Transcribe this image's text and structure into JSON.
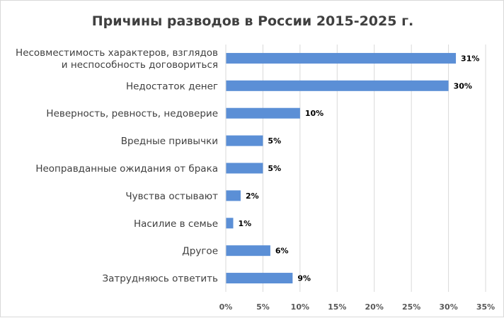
{
  "chart_data": {
    "type": "bar",
    "orientation": "horizontal",
    "title": "Причины разводов в России 2015-2025 г.",
    "categories": [
      [
        "Несовместимость характеров, взглядов",
        "и неспособность договориться"
      ],
      [
        "Недостаток денег"
      ],
      [
        "Неверность, ревность, недоверие"
      ],
      [
        "Вредные привычки"
      ],
      [
        "Неоправданные ожидания от брака"
      ],
      [
        "Чувства остывают"
      ],
      [
        "Насилие в семье"
      ],
      [
        "Другое"
      ],
      [
        "Затрудняюсь ответить"
      ]
    ],
    "values": [
      31,
      30,
      10,
      5,
      5,
      2,
      1,
      6,
      9
    ],
    "value_labels": [
      "31%",
      "30%",
      "10%",
      "5%",
      "5%",
      "2%",
      "1%",
      "6%",
      "9%"
    ],
    "xlim": [
      0,
      35
    ],
    "x_ticks": [
      0,
      5,
      10,
      15,
      20,
      25,
      30,
      35
    ],
    "x_tick_labels": [
      "0%",
      "5%",
      "10%",
      "15%",
      "20%",
      "25%",
      "30%",
      "35%"
    ],
    "grid": true,
    "bar_color": "#5b8fd6"
  }
}
